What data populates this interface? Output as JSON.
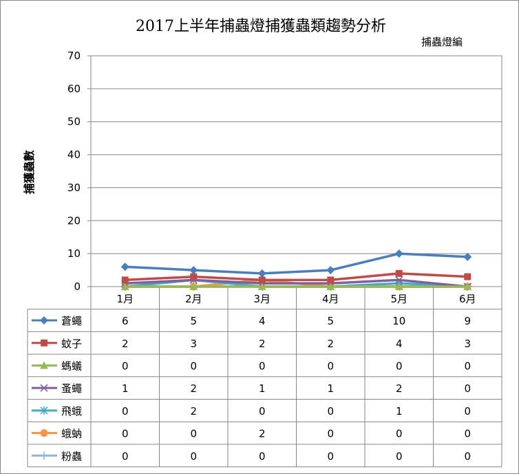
{
  "chart_data": {
    "type": "line",
    "title": "2017上半年捕蟲燈捕獲蟲類趨勢分析",
    "subtitle": "捕蟲燈編",
    "ylabel": "捕獲蟲數",
    "ylim": [
      0,
      70
    ],
    "yticks": [
      0,
      10,
      20,
      30,
      40,
      50,
      60,
      70
    ],
    "categories": [
      "1月",
      "2月",
      "3月",
      "4月",
      "5月",
      "6月"
    ],
    "grid": true,
    "legend": "data-table",
    "series": [
      {
        "name": "蒼蠅",
        "values": [
          6,
          5,
          4,
          5,
          10,
          9
        ],
        "color": "#4A7EBB",
        "marker": "diamond"
      },
      {
        "name": "蚊子",
        "values": [
          2,
          3,
          2,
          2,
          4,
          3
        ],
        "color": "#BE4B48",
        "marker": "square"
      },
      {
        "name": "螞蟻",
        "values": [
          0,
          0,
          0,
          0,
          0,
          0
        ],
        "color": "#98B954",
        "marker": "triangle"
      },
      {
        "name": "蚤蠅",
        "values": [
          1,
          2,
          1,
          1,
          2,
          0
        ],
        "color": "#7D60A0",
        "marker": "x"
      },
      {
        "name": "飛蛾",
        "values": [
          0,
          2,
          0,
          0,
          1,
          0
        ],
        "color": "#46AAC5",
        "marker": "star"
      },
      {
        "name": "蛾蚋",
        "values": [
          0,
          0,
          2,
          0,
          0,
          0
        ],
        "color": "#F79646",
        "marker": "circle"
      },
      {
        "name": "粉蟲",
        "values": [
          0,
          0,
          0,
          0,
          0,
          0
        ],
        "color": "#95B3D7",
        "marker": "plus"
      }
    ]
  }
}
